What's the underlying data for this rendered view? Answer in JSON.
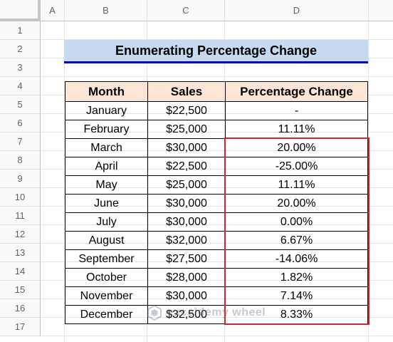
{
  "columns": [
    "A",
    "B",
    "C",
    "D"
  ],
  "rows": [
    "1",
    "2",
    "3",
    "4",
    "5",
    "6",
    "7",
    "8",
    "9",
    "10",
    "11",
    "12",
    "13",
    "14",
    "15",
    "16",
    "17"
  ],
  "title": "Enumerating Percentage Change",
  "table": {
    "headers": [
      "Month",
      "Sales",
      "Percentage Change"
    ],
    "data": [
      [
        "January",
        "$22,500",
        "-"
      ],
      [
        "February",
        "$25,000",
        "11.11%"
      ],
      [
        "March",
        "$30,000",
        "20.00%"
      ],
      [
        "April",
        "$22,500",
        "-25.00%"
      ],
      [
        "May",
        "$25,000",
        "11.11%"
      ],
      [
        "June",
        "$30,000",
        "20.00%"
      ],
      [
        "July",
        "$30,000",
        "0.00%"
      ],
      [
        "August",
        "$32,000",
        "6.67%"
      ],
      [
        "September",
        "$27,500",
        "-14.06%"
      ],
      [
        "October",
        "$28,000",
        "1.82%"
      ],
      [
        "November",
        "$30,000",
        "7.14%"
      ],
      [
        "December",
        "$32,500",
        "8.33%"
      ]
    ]
  },
  "watermark": {
    "text": "exceldemy wheel",
    "icon": "watermark-logo-icon"
  },
  "colors": {
    "title_fill": "#c6d9f1",
    "title_underline": "#0000cc",
    "header_fill": "#fce4d6",
    "highlight_border": "#e01e26"
  }
}
